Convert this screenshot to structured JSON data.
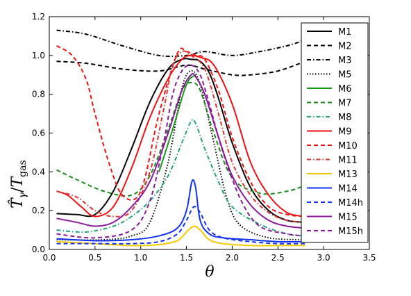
{
  "chart_data": {
    "type": "line",
    "xlabel": "θ",
    "ylabel_main": "T̂",
    "ylabel_main_sub": "γ",
    "ylabel_sep": "/",
    "ylabel_denom": "T",
    "ylabel_denom_sub": "gas",
    "xlim": [
      0,
      3.5
    ],
    "ylim": [
      0,
      1.2
    ],
    "xticks": [
      "0.0",
      "0.5",
      "1.0",
      "1.5",
      "2.0",
      "2.5",
      "3.0",
      "3.5"
    ],
    "yticks": [
      "0.0",
      "0.2",
      "0.4",
      "0.6",
      "0.8",
      "1.0",
      "1.2"
    ],
    "grid": false,
    "legend_position": "right",
    "series": [
      {
        "name": "M1",
        "color": "#000000",
        "dash": "solid",
        "x": [
          0.08,
          0.3,
          0.5,
          0.7,
          0.9,
          1.1,
          1.3,
          1.45,
          1.55,
          1.65,
          1.75,
          1.85,
          2.0,
          2.2,
          2.4,
          2.6,
          2.8
        ],
        "y": [
          0.185,
          0.18,
          0.18,
          0.3,
          0.52,
          0.76,
          0.93,
          0.98,
          0.98,
          0.97,
          0.91,
          0.78,
          0.55,
          0.32,
          0.2,
          0.15,
          0.14
        ]
      },
      {
        "name": "M2",
        "color": "#000000",
        "dash": "dashed",
        "x": [
          0.08,
          0.4,
          0.8,
          1.2,
          1.5,
          1.7,
          2.0,
          2.2,
          2.5,
          2.8
        ],
        "y": [
          0.97,
          0.96,
          0.93,
          0.92,
          0.95,
          0.93,
          0.9,
          0.9,
          0.92,
          0.97
        ]
      },
      {
        "name": "M3",
        "color": "#000000",
        "dash": "dashdot",
        "x": [
          0.08,
          0.4,
          0.8,
          1.2,
          1.5,
          1.7,
          2.0,
          2.3,
          2.6,
          2.8
        ],
        "y": [
          1.13,
          1.11,
          1.05,
          1.0,
          1.0,
          1.02,
          1.0,
          1.02,
          1.05,
          1.08
        ]
      },
      {
        "name": "M5",
        "color": "#000000",
        "dash": "dotted",
        "x": [
          0.08,
          0.6,
          0.9,
          1.1,
          1.3,
          1.45,
          1.55,
          1.65,
          1.8,
          1.95,
          2.1,
          2.4,
          2.8
        ],
        "y": [
          0.05,
          0.05,
          0.07,
          0.14,
          0.45,
          0.83,
          0.92,
          0.85,
          0.55,
          0.25,
          0.12,
          0.06,
          0.05
        ]
      },
      {
        "name": "M6",
        "color": "#1a9a1a",
        "dash": "solid",
        "x": [
          1.2,
          1.35,
          1.5,
          1.6
        ],
        "y": [
          0.4,
          0.62,
          0.85,
          0.9
        ]
      },
      {
        "name": "M7",
        "color": "#1a8a1a",
        "dash": "dashed",
        "x": [
          0.08,
          0.3,
          0.6,
          0.9,
          1.1,
          1.3,
          1.45,
          1.55,
          1.65,
          1.8,
          2.0,
          2.3,
          2.6,
          2.8
        ],
        "y": [
          0.41,
          0.36,
          0.3,
          0.28,
          0.38,
          0.62,
          0.82,
          0.86,
          0.82,
          0.6,
          0.37,
          0.29,
          0.3,
          0.33
        ]
      },
      {
        "name": "M8",
        "color": "#22a07a",
        "dash": "dashdot",
        "x": [
          0.08,
          0.4,
          0.7,
          0.9,
          1.1,
          1.3,
          1.45,
          1.55,
          1.6,
          1.7,
          1.85,
          2.0,
          2.3,
          2.6,
          2.8
        ],
        "y": [
          0.1,
          0.09,
          0.12,
          0.17,
          0.25,
          0.38,
          0.55,
          0.66,
          0.65,
          0.52,
          0.35,
          0.22,
          0.13,
          0.08,
          0.07
        ]
      },
      {
        "name": "M9",
        "color": "#ee1111",
        "dash": "solid",
        "x": [
          0.08,
          0.2,
          0.35,
          0.5,
          0.7,
          0.9,
          1.1,
          1.3,
          1.45,
          1.55,
          1.65,
          1.8,
          2.0,
          2.2,
          2.4,
          2.6,
          2.8
        ],
        "y": [
          0.3,
          0.28,
          0.22,
          0.17,
          0.22,
          0.42,
          0.68,
          0.88,
          0.98,
          1.0,
          0.99,
          0.95,
          0.75,
          0.45,
          0.28,
          0.19,
          0.17
        ]
      },
      {
        "name": "M10",
        "color": "#ee1111",
        "dash": "dashed",
        "x": [
          0.08,
          0.25,
          0.4,
          0.5,
          0.65,
          0.8,
          1.0,
          1.2,
          1.4,
          1.5,
          1.6,
          1.7,
          1.85,
          2.0,
          2.2,
          2.4,
          2.6,
          2.8
        ],
        "y": [
          1.05,
          1.0,
          0.88,
          0.7,
          0.45,
          0.28,
          0.3,
          0.7,
          1.01,
          1.02,
          1.0,
          0.98,
          0.82,
          0.58,
          0.35,
          0.22,
          0.18,
          0.17
        ]
      },
      {
        "name": "M11",
        "color": "#dd3333",
        "dash": "dashdot",
        "x": [
          0.08,
          0.3,
          0.5,
          0.7,
          0.9,
          1.1,
          1.25,
          1.35,
          1.45,
          1.55,
          1.7,
          1.85,
          2.0,
          2.2,
          2.4,
          2.6,
          2.8
        ],
        "y": [
          0.3,
          0.27,
          0.2,
          0.17,
          0.2,
          0.4,
          0.72,
          0.95,
          1.02,
          1.0,
          0.93,
          0.7,
          0.45,
          0.28,
          0.19,
          0.15,
          0.14
        ]
      },
      {
        "name": "M13",
        "color": "#f5c800",
        "dash": "solid",
        "x": [
          0.08,
          0.5,
          0.9,
          1.2,
          1.4,
          1.5,
          1.58,
          1.65,
          1.75,
          1.9,
          2.2,
          2.5,
          2.8
        ],
        "y": [
          0.04,
          0.03,
          0.02,
          0.025,
          0.045,
          0.09,
          0.12,
          0.1,
          0.05,
          0.03,
          0.02,
          0.02,
          0.02
        ]
      },
      {
        "name": "M14",
        "color": "#1133ee",
        "dash": "solid",
        "x": [
          0.08,
          0.5,
          0.9,
          1.2,
          1.4,
          1.5,
          1.56,
          1.6,
          1.65,
          1.75,
          1.9,
          2.2,
          2.5,
          2.8
        ],
        "y": [
          0.055,
          0.045,
          0.05,
          0.07,
          0.11,
          0.2,
          0.35,
          0.32,
          0.15,
          0.08,
          0.06,
          0.05,
          0.04,
          0.04
        ]
      },
      {
        "name": "M14h",
        "color": "#1133ee",
        "dash": "dashed",
        "x": [
          0.08,
          0.5,
          0.9,
          1.2,
          1.4,
          1.5,
          1.58,
          1.65,
          1.75,
          1.9,
          2.2,
          2.5,
          2.8
        ],
        "y": [
          0.03,
          0.03,
          0.03,
          0.04,
          0.08,
          0.15,
          0.22,
          0.19,
          0.1,
          0.06,
          0.04,
          0.03,
          0.03
        ]
      },
      {
        "name": "M15",
        "color": "#8a1a9a",
        "dash": "solid",
        "x": [
          0.08,
          0.3,
          0.5,
          0.7,
          0.9,
          1.1,
          1.3,
          1.45,
          1.55,
          1.6,
          1.7,
          1.85,
          2.0,
          2.2,
          2.4,
          2.6,
          2.8
        ],
        "y": [
          0.16,
          0.14,
          0.12,
          0.14,
          0.22,
          0.35,
          0.6,
          0.82,
          0.9,
          0.89,
          0.8,
          0.58,
          0.38,
          0.23,
          0.15,
          0.12,
          0.11
        ]
      },
      {
        "name": "M15h",
        "color": "#8a1a9a",
        "dash": "dashed",
        "x": [
          0.08,
          0.5,
          0.9,
          1.1,
          1.25,
          1.35,
          1.45,
          1.55,
          1.65,
          1.75,
          1.9,
          2.1,
          2.3,
          2.6,
          2.8
        ],
        "y": [
          0.08,
          0.06,
          0.1,
          0.25,
          0.55,
          0.8,
          0.92,
          0.95,
          0.9,
          0.75,
          0.5,
          0.25,
          0.12,
          0.08,
          0.07
        ]
      }
    ]
  }
}
